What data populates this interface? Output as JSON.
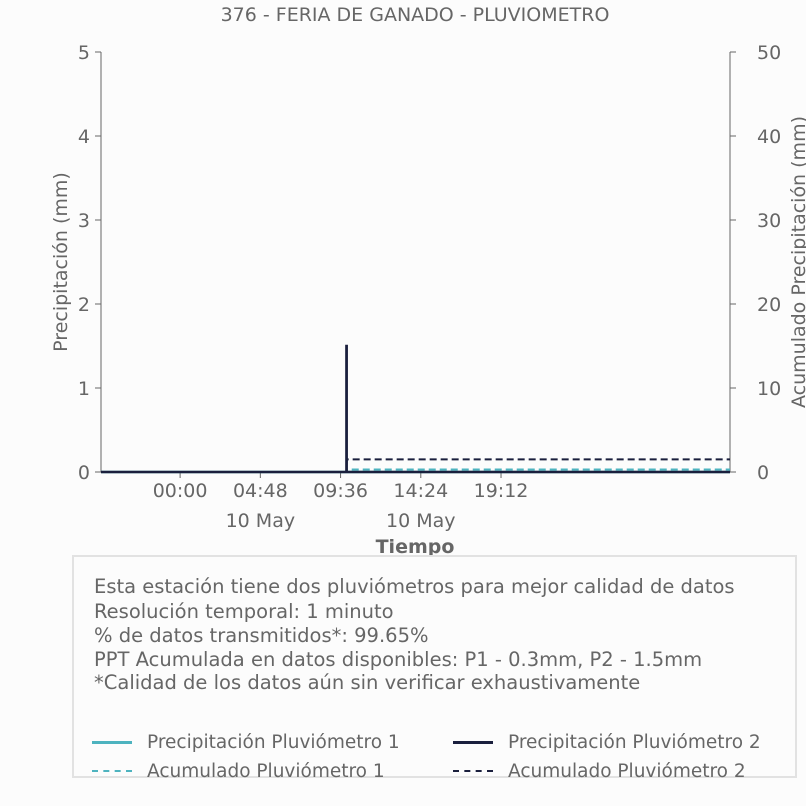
{
  "chart_data": {
    "type": "line",
    "title": "376 - FERIA DE GANADO - PLUVIOMETRO",
    "xlabel": "Tiempo",
    "ylabel": "Precipitación (mm)",
    "ylabel_right": "Acumulado Precipitación (mm)",
    "x_ticks": [
      {
        "t": 0,
        "line1": "00:00",
        "line2": ""
      },
      {
        "t": 288,
        "line1": "04:48",
        "line2": "10 May"
      },
      {
        "t": 576,
        "line1": "09:36",
        "line2": ""
      },
      {
        "t": 864,
        "line1": "14:24",
        "line2": "10 May"
      },
      {
        "t": 1152,
        "line1": "19:12",
        "line2": ""
      }
    ],
    "xlim": [
      -284,
      1974
    ],
    "ylim": [
      0,
      5
    ],
    "ylim_right": [
      0,
      50
    ],
    "y_ticks": [
      0,
      1,
      2,
      3,
      4,
      5
    ],
    "y_ticks_right": [
      0,
      10,
      20,
      30,
      40,
      50
    ],
    "series": [
      {
        "name": "Precipitación Pluviómetro 1",
        "axis": "left",
        "color": "#4db3bf",
        "style": "solid",
        "x": [
          -284,
          1974
        ],
        "y": [
          0,
          0
        ]
      },
      {
        "name": "Precipitación Pluviómetro 2",
        "axis": "left",
        "color": "#1a1f3d",
        "style": "solid",
        "x": [
          -284,
          597,
          597,
          598,
          598,
          1974
        ],
        "y": [
          0,
          0,
          1.5,
          1.5,
          0,
          0
        ]
      },
      {
        "name": "Acumulado Pluviómetro 1",
        "axis": "right",
        "color": "#4db3bf",
        "style": "dashed",
        "x": [
          -284,
          597,
          598,
          1974
        ],
        "y": [
          0,
          0,
          0.3,
          0.3
        ]
      },
      {
        "name": "Acumulado Pluviómetro 2",
        "axis": "right",
        "color": "#1a1f3d",
        "style": "dashed",
        "x": [
          -284,
          597,
          598,
          1974
        ],
        "y": [
          0,
          0,
          1.5,
          1.5
        ]
      }
    ],
    "grid": false,
    "legend_position": "bottom"
  },
  "info": {
    "lines": [
      "Esta estación tiene dos pluviómetros para mejor calidad de datos",
      "Resolución temporal: 1 minuto",
      "% de datos transmitidos*: 99.65%",
      "PPT Acumulada en datos disponibles: P1 - 0.3mm, P2 - 1.5mm",
      "*Calidad de los datos aún sin verificar exhaustivamente"
    ]
  },
  "colors": {
    "p1": "#4db3bf",
    "p2": "#1a1f3d",
    "text": "#666666",
    "axis": "#666666"
  }
}
